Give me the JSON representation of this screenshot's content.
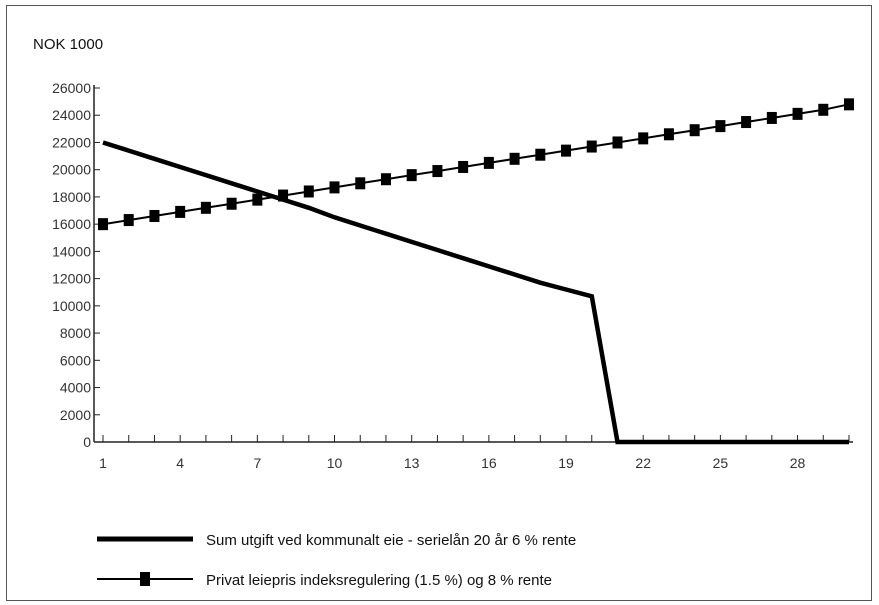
{
  "chart_data": {
    "type": "line",
    "unit_label": "NOK 1000",
    "xlim": [
      1,
      30
    ],
    "ylim": [
      0,
      26000
    ],
    "x_ticks": [
      1,
      4,
      7,
      10,
      13,
      16,
      19,
      22,
      25,
      28
    ],
    "y_ticks": [
      0,
      2000,
      4000,
      6000,
      8000,
      10000,
      12000,
      14000,
      16000,
      18000,
      20000,
      22000,
      24000,
      26000
    ],
    "grid": false,
    "legend_position": "bottom",
    "series": [
      {
        "name": "Sum utgift ved kommunalt eie - serielån 20 år 6 % rente",
        "color": "#000000",
        "marker": "none",
        "x": [
          1,
          2,
          3,
          4,
          5,
          6,
          7,
          8,
          9,
          10,
          11,
          12,
          13,
          14,
          15,
          16,
          17,
          18,
          19,
          20,
          21,
          22,
          23,
          24,
          25,
          26,
          27,
          28,
          29,
          30
        ],
        "y": [
          22000,
          21400,
          20800,
          20200,
          19600,
          19000,
          18400,
          17800,
          17200,
          16500,
          15900,
          15300,
          14700,
          14100,
          13500,
          12900,
          12300,
          11700,
          11200,
          10700,
          0,
          0,
          0,
          0,
          0,
          0,
          0,
          0,
          0,
          0
        ]
      },
      {
        "name": "Privat leiepris indeksregulering (1.5 %) og 8 % rente",
        "color": "#000000",
        "marker": "square",
        "x": [
          1,
          2,
          3,
          4,
          5,
          6,
          7,
          8,
          9,
          10,
          11,
          12,
          13,
          14,
          15,
          16,
          17,
          18,
          19,
          20,
          21,
          22,
          23,
          24,
          25,
          26,
          27,
          28,
          29,
          30
        ],
        "y": [
          16000,
          16300,
          16600,
          16900,
          17200,
          17500,
          17800,
          18100,
          18400,
          18700,
          19000,
          19300,
          19600,
          19900,
          20200,
          20500,
          20800,
          21100,
          21400,
          21700,
          22000,
          22300,
          22600,
          22900,
          23200,
          23500,
          23800,
          24100,
          24400,
          24800
        ]
      }
    ]
  }
}
